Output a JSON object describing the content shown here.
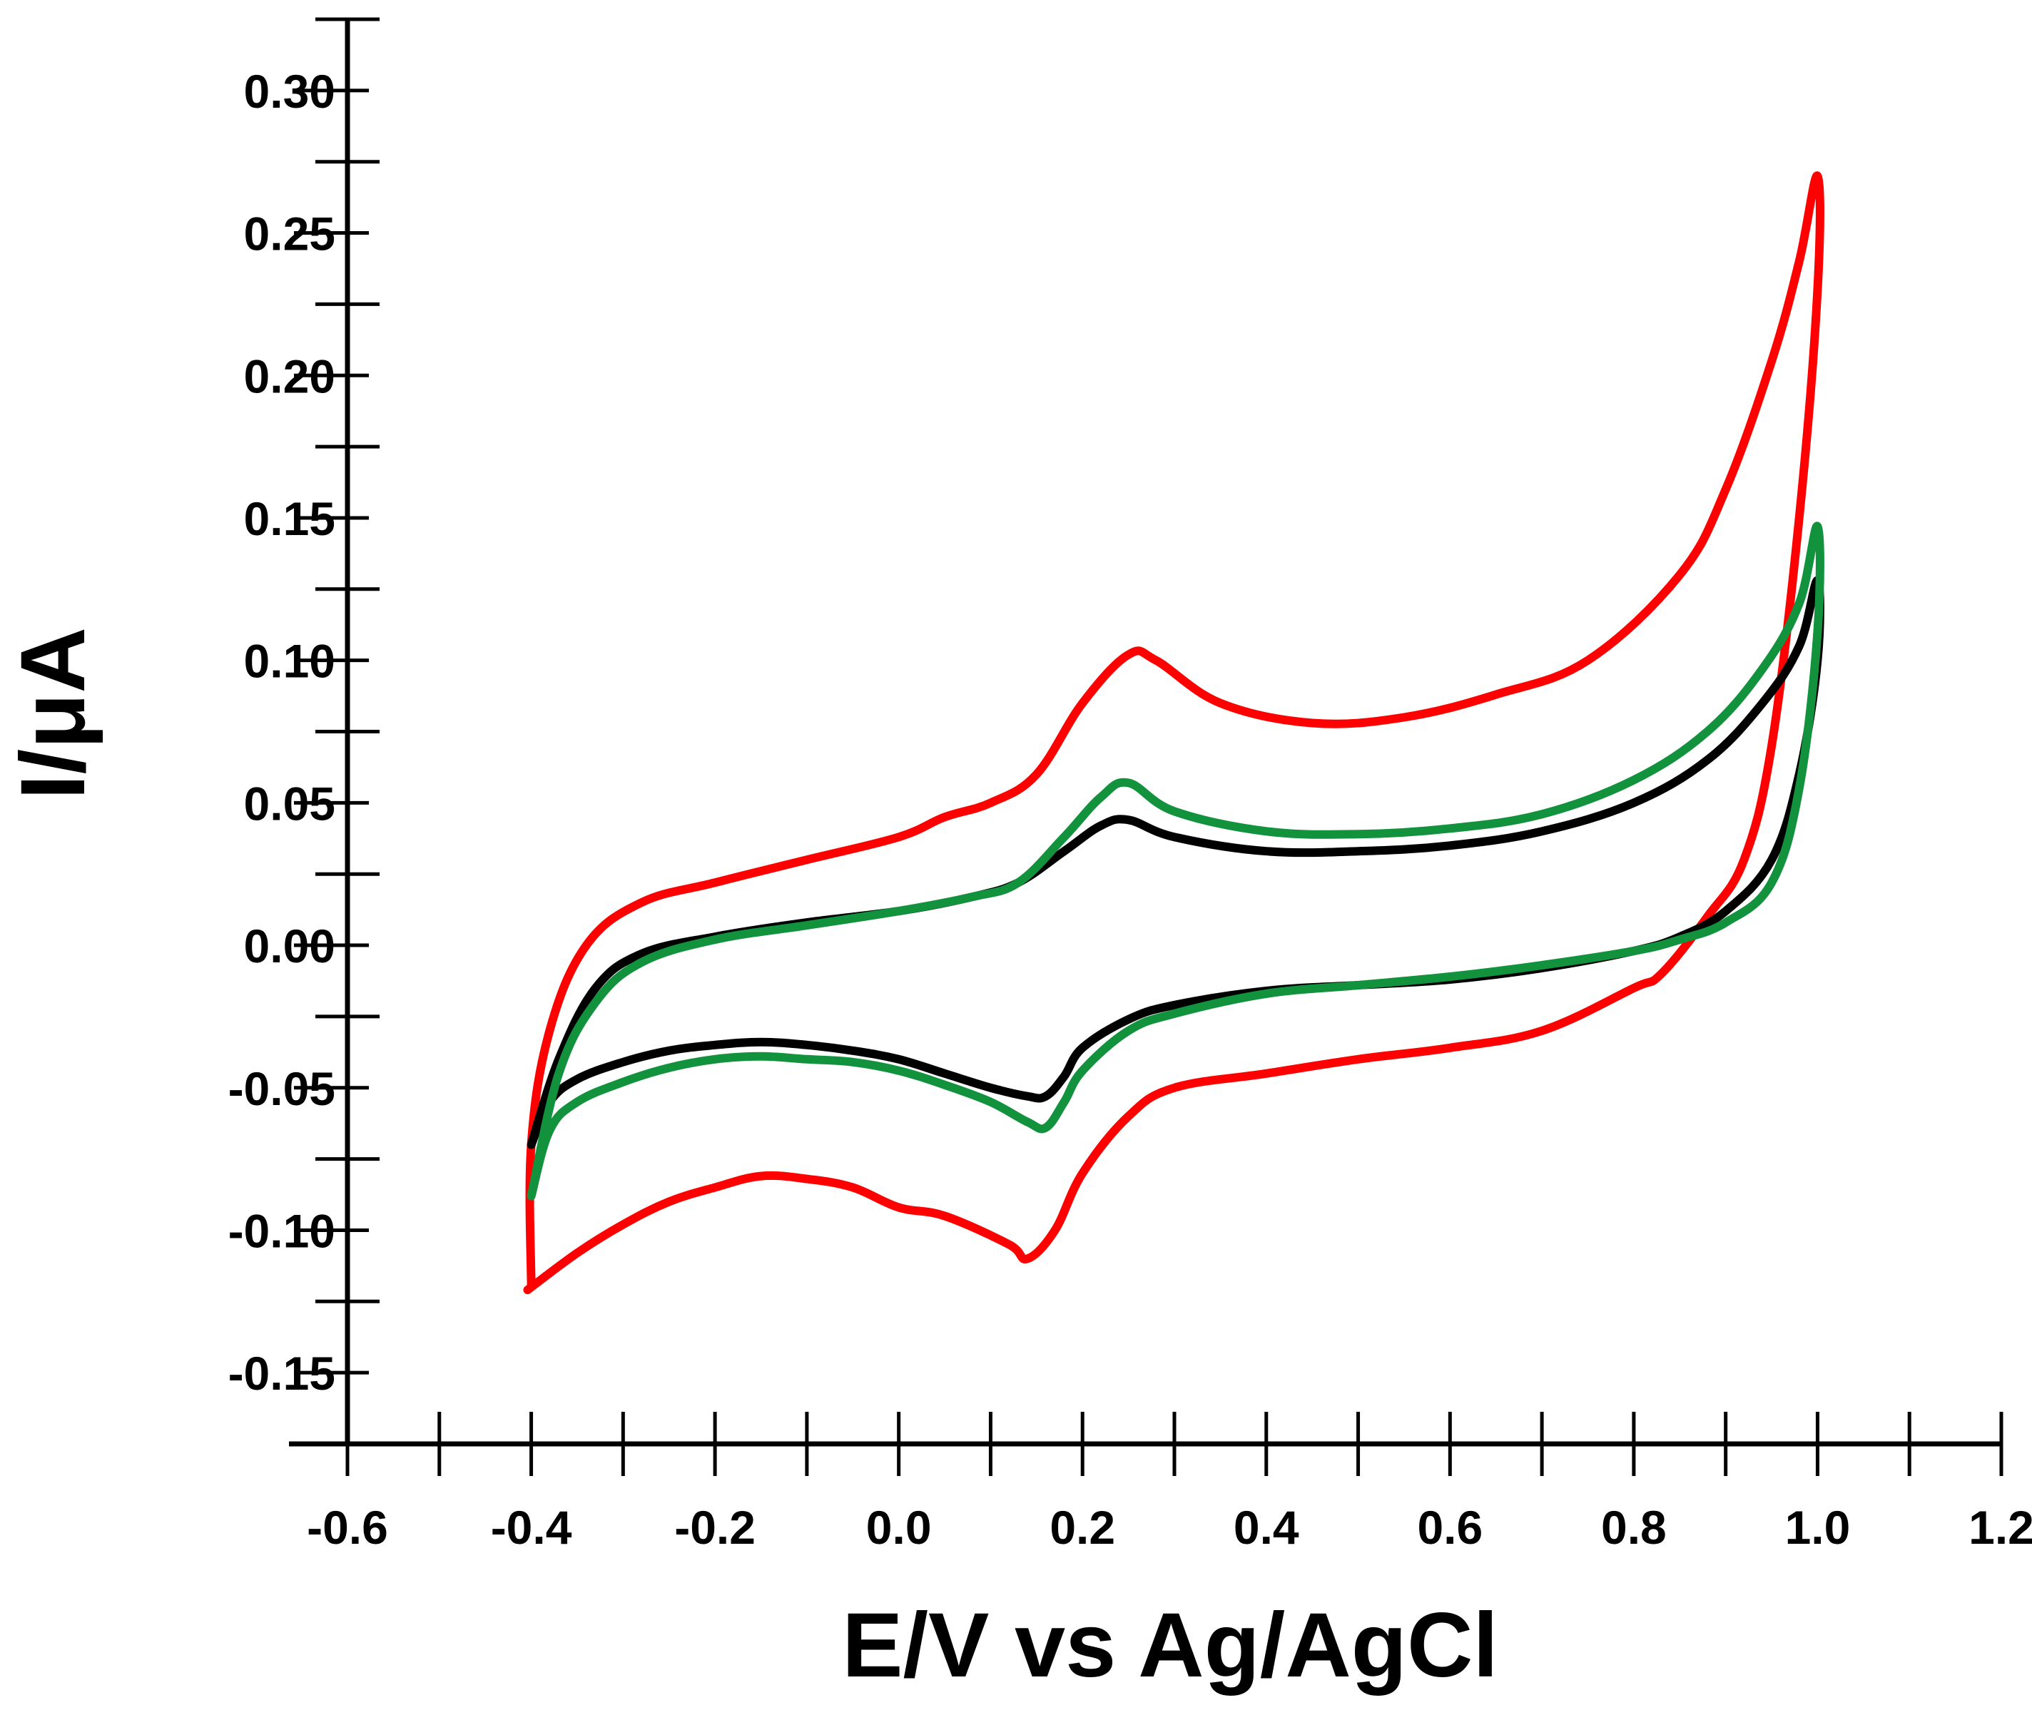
{
  "chart_data": {
    "type": "line",
    "xlabel": "E/V vs Ag/AgCl",
    "ylabel": "I/μA",
    "xlim": [
      -0.6,
      1.2
    ],
    "ylim": [
      -0.175,
      0.325
    ],
    "x_ticks": [
      "-0.6",
      "-0.4",
      "-0.2",
      "0.0",
      "0.2",
      "0.4",
      "0.6",
      "0.8",
      "1.0",
      "1.2"
    ],
    "y_ticks": [
      "-0.15",
      "-0.10",
      "-0.05",
      "0.00",
      "0.05",
      "0.10",
      "0.15",
      "0.20",
      "0.25",
      "0.30"
    ],
    "grid": false,
    "legend": "none",
    "series": [
      {
        "color": "#ff0000",
        "x": [
          -0.4,
          -0.4,
          -0.38,
          -0.34,
          -0.28,
          -0.2,
          -0.1,
          0.0,
          0.05,
          0.1,
          0.15,
          0.2,
          0.25,
          0.28,
          0.35,
          0.45,
          0.55,
          0.65,
          0.75,
          0.85,
          0.9,
          0.95,
          0.98,
          1.0,
          1.0,
          0.98,
          0.95,
          0.92,
          0.88,
          0.83,
          0.8,
          0.7,
          0.6,
          0.5,
          0.4,
          0.3,
          0.25,
          0.2,
          0.17,
          0.14,
          0.12,
          0.05,
          0.0,
          -0.05,
          -0.1,
          -0.15,
          -0.2,
          -0.25,
          -0.3,
          -0.35,
          -0.4,
          -0.4
        ],
        "y": [
          -0.12,
          -0.07,
          -0.03,
          0.0,
          0.015,
          0.022,
          0.03,
          0.038,
          0.045,
          0.05,
          0.06,
          0.085,
          0.102,
          0.1,
          0.085,
          0.078,
          0.08,
          0.088,
          0.1,
          0.13,
          0.16,
          0.205,
          0.24,
          0.27,
          0.23,
          0.15,
          0.07,
          0.03,
          0.01,
          -0.01,
          -0.015,
          -0.03,
          -0.036,
          -0.04,
          -0.045,
          -0.05,
          -0.06,
          -0.08,
          -0.1,
          -0.11,
          -0.105,
          -0.095,
          -0.092,
          -0.085,
          -0.082,
          -0.081,
          -0.085,
          -0.09,
          -0.098,
          -0.108,
          -0.12,
          -0.12
        ]
      },
      {
        "color": "#000000",
        "x": [
          -0.4,
          -0.37,
          -0.33,
          -0.28,
          -0.2,
          -0.1,
          0.0,
          0.08,
          0.13,
          0.18,
          0.22,
          0.25,
          0.3,
          0.4,
          0.5,
          0.6,
          0.7,
          0.8,
          0.88,
          0.94,
          0.98,
          1.0,
          1.0,
          0.98,
          0.95,
          0.9,
          0.85,
          0.8,
          0.7,
          0.6,
          0.5,
          0.4,
          0.3,
          0.25,
          0.2,
          0.18,
          0.16,
          0.14,
          0.1,
          0.05,
          0.0,
          -0.05,
          -0.1,
          -0.15,
          -0.2,
          -0.25,
          -0.3,
          -0.35,
          -0.38,
          -0.4
        ],
        "y": [
          -0.07,
          -0.04,
          -0.015,
          -0.003,
          0.003,
          0.008,
          0.012,
          0.017,
          0.022,
          0.033,
          0.042,
          0.044,
          0.038,
          0.033,
          0.033,
          0.035,
          0.04,
          0.05,
          0.065,
          0.085,
          0.105,
          0.128,
          0.1,
          0.06,
          0.03,
          0.012,
          0.003,
          -0.002,
          -0.008,
          -0.012,
          -0.014,
          -0.016,
          -0.021,
          -0.026,
          -0.036,
          -0.046,
          -0.053,
          -0.053,
          -0.05,
          -0.045,
          -0.04,
          -0.037,
          -0.035,
          -0.034,
          -0.035,
          -0.037,
          -0.041,
          -0.047,
          -0.055,
          -0.07
        ]
      },
      {
        "color": "#13923d",
        "x": [
          -0.4,
          -0.37,
          -0.33,
          -0.28,
          -0.2,
          -0.1,
          0.0,
          0.08,
          0.13,
          0.18,
          0.22,
          0.25,
          0.3,
          0.4,
          0.5,
          0.6,
          0.7,
          0.8,
          0.88,
          0.94,
          0.98,
          1.0,
          1.0,
          0.98,
          0.95,
          0.9,
          0.85,
          0.8,
          0.7,
          0.6,
          0.5,
          0.4,
          0.3,
          0.25,
          0.2,
          0.18,
          0.16,
          0.14,
          0.1,
          0.05,
          0.0,
          -0.05,
          -0.1,
          -0.15,
          -0.2,
          -0.25,
          -0.3,
          -0.35,
          -0.38,
          -0.4
        ],
        "y": [
          -0.088,
          -0.045,
          -0.02,
          -0.006,
          0.002,
          0.007,
          0.012,
          0.017,
          0.022,
          0.038,
          0.052,
          0.057,
          0.047,
          0.04,
          0.039,
          0.041,
          0.046,
          0.058,
          0.075,
          0.097,
          0.12,
          0.147,
          0.11,
          0.055,
          0.022,
          0.008,
          0.002,
          -0.002,
          -0.007,
          -0.011,
          -0.014,
          -0.017,
          -0.024,
          -0.03,
          -0.044,
          -0.055,
          -0.064,
          -0.062,
          -0.055,
          -0.049,
          -0.044,
          -0.041,
          -0.04,
          -0.039,
          -0.04,
          -0.043,
          -0.048,
          -0.055,
          -0.065,
          -0.088
        ]
      }
    ]
  }
}
